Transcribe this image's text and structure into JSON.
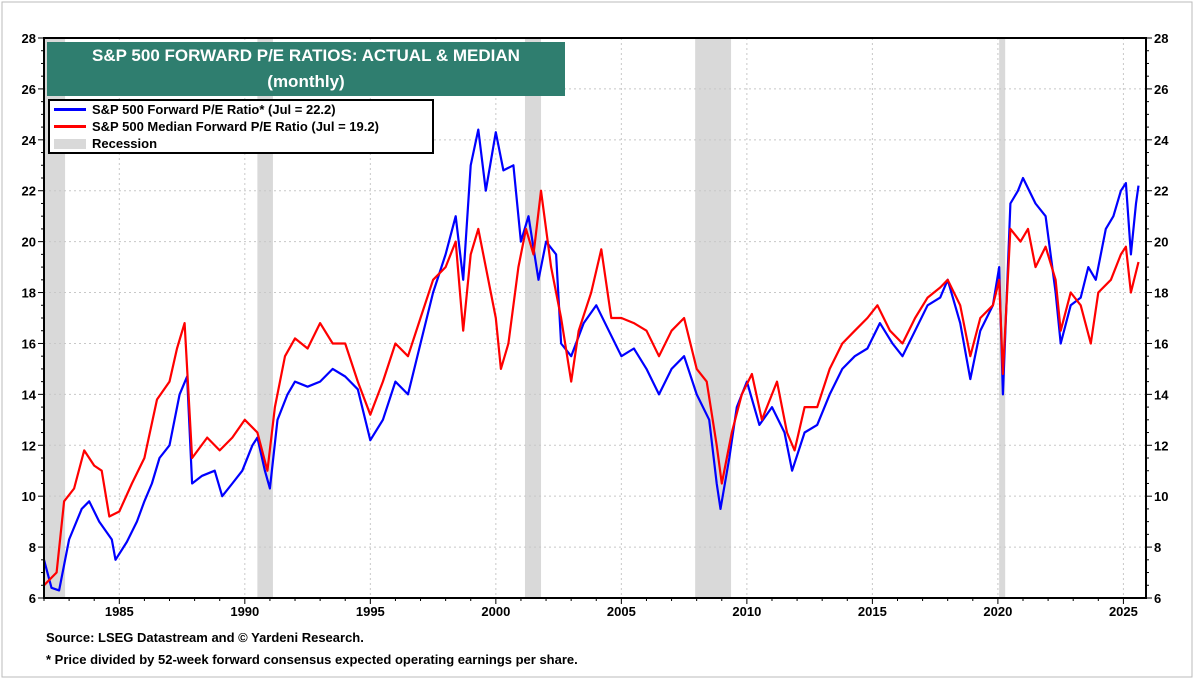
{
  "chart_data": {
    "type": "line",
    "title": "S&P 500 FORWARD P/E RATIOS: ACTUAL & MEDIAN",
    "subtitle": "(monthly)",
    "xlabel": "",
    "ylabel": "",
    "xlim": [
      1982.0,
      2025.9
    ],
    "ylim": [
      6,
      28
    ],
    "y_ticks": [
      6,
      8,
      10,
      12,
      14,
      16,
      18,
      20,
      22,
      24,
      26,
      28
    ],
    "x_ticks": [
      1985,
      1990,
      1995,
      2000,
      2005,
      2010,
      2015,
      2020,
      2025
    ],
    "grid": true,
    "legend_position": "top-left",
    "series": [
      {
        "name": "S&P 500 Forward P/E Ratio* (Jul = 22.2)",
        "color": "#0000ff",
        "x": [
          1982.0,
          1982.3,
          1982.6,
          1983.0,
          1983.5,
          1983.8,
          1984.2,
          1984.7,
          1984.85,
          1985.3,
          1985.7,
          1986.0,
          1986.3,
          1986.6,
          1987.0,
          1987.4,
          1987.7,
          1987.9,
          1988.3,
          1988.8,
          1989.1,
          1989.5,
          1989.9,
          1990.3,
          1990.5,
          1990.8,
          1991.0,
          1991.3,
          1991.7,
          1992.0,
          1992.5,
          1993.0,
          1993.5,
          1994.0,
          1994.5,
          1995.0,
          1995.5,
          1996.0,
          1996.5,
          1997.0,
          1997.5,
          1998.0,
          1998.4,
          1998.7,
          1999.0,
          1999.3,
          1999.6,
          2000.0,
          2000.3,
          2000.7,
          2001.0,
          2001.3,
          2001.7,
          2002.0,
          2002.4,
          2002.6,
          2003.0,
          2003.5,
          2004.0,
          2004.5,
          2005.0,
          2005.5,
          2006.0,
          2006.5,
          2007.0,
          2007.5,
          2008.0,
          2008.5,
          2008.8,
          2008.95,
          2009.3,
          2009.6,
          2010.0,
          2010.5,
          2011.0,
          2011.5,
          2011.8,
          2012.3,
          2012.8,
          2013.3,
          2013.8,
          2014.3,
          2014.8,
          2015.3,
          2015.8,
          2016.2,
          2016.7,
          2017.2,
          2017.7,
          2018.0,
          2018.5,
          2018.9,
          2019.3,
          2019.8,
          2020.05,
          2020.2,
          2020.5,
          2020.8,
          2021.0,
          2021.5,
          2021.9,
          2022.3,
          2022.5,
          2022.9,
          2023.3,
          2023.6,
          2023.9,
          2024.3,
          2024.6,
          2024.9,
          2025.1,
          2025.3,
          2025.5,
          2025.6
        ],
        "values": [
          7.5,
          6.4,
          6.3,
          8.3,
          9.5,
          9.8,
          9.0,
          8.3,
          7.5,
          8.2,
          9.0,
          9.8,
          10.5,
          11.5,
          12.0,
          14.0,
          14.7,
          10.5,
          10.8,
          11.0,
          10.0,
          10.5,
          11.0,
          12.0,
          12.3,
          11.0,
          10.3,
          13.0,
          14.0,
          14.5,
          14.3,
          14.5,
          15.0,
          14.7,
          14.2,
          12.2,
          13.0,
          14.5,
          14.0,
          16.0,
          18.0,
          19.5,
          21.0,
          18.5,
          23.0,
          24.4,
          22.0,
          24.3,
          22.8,
          23.0,
          20.0,
          21.0,
          18.5,
          20.0,
          19.5,
          16.0,
          15.5,
          16.8,
          17.5,
          16.5,
          15.5,
          15.8,
          15.0,
          14.0,
          15.0,
          15.5,
          14.0,
          13.0,
          10.5,
          9.5,
          11.5,
          13.5,
          14.5,
          12.8,
          13.5,
          12.5,
          11.0,
          12.5,
          12.8,
          14.0,
          15.0,
          15.5,
          15.8,
          16.8,
          16.0,
          15.5,
          16.5,
          17.5,
          17.8,
          18.5,
          16.8,
          14.6,
          16.5,
          17.5,
          19.0,
          14.0,
          21.5,
          22.0,
          22.5,
          21.5,
          21.0,
          18.0,
          16.0,
          17.5,
          17.8,
          19.0,
          18.5,
          20.5,
          21.0,
          22.0,
          22.3,
          19.5,
          21.5,
          22.2
        ]
      },
      {
        "name": "S&P 500 Median Forward P/E Ratio  (Jul = 19.2)",
        "color": "#ff0000",
        "x": [
          1982.0,
          1982.5,
          1982.8,
          1983.2,
          1983.6,
          1984.0,
          1984.3,
          1984.6,
          1985.0,
          1985.5,
          1986.0,
          1986.5,
          1987.0,
          1987.3,
          1987.6,
          1987.9,
          1988.5,
          1989.0,
          1989.5,
          1990.0,
          1990.5,
          1990.9,
          1991.2,
          1991.6,
          1992.0,
          1992.5,
          1993.0,
          1993.5,
          1994.0,
          1994.5,
          1995.0,
          1995.5,
          1996.0,
          1996.5,
          1997.0,
          1997.5,
          1998.0,
          1998.4,
          1998.7,
          1999.0,
          1999.3,
          1999.6,
          2000.0,
          2000.2,
          2000.5,
          2000.9,
          2001.2,
          2001.5,
          2001.8,
          2002.2,
          2002.6,
          2003.0,
          2003.3,
          2003.8,
          2004.2,
          2004.6,
          2005.0,
          2005.5,
          2006.0,
          2006.5,
          2007.0,
          2007.5,
          2008.0,
          2008.4,
          2008.8,
          2009.0,
          2009.4,
          2009.8,
          2010.2,
          2010.6,
          2011.2,
          2011.6,
          2011.9,
          2012.3,
          2012.8,
          2013.3,
          2013.8,
          2014.3,
          2014.8,
          2015.2,
          2015.7,
          2016.2,
          2016.7,
          2017.2,
          2017.7,
          2018.0,
          2018.5,
          2018.9,
          2019.3,
          2019.8,
          2020.05,
          2020.2,
          2020.5,
          2020.9,
          2021.2,
          2021.5,
          2021.9,
          2022.3,
          2022.5,
          2022.9,
          2023.3,
          2023.7,
          2024.0,
          2024.5,
          2024.9,
          2025.1,
          2025.3,
          2025.6
        ],
        "values": [
          6.5,
          7.0,
          9.8,
          10.3,
          11.8,
          11.2,
          11.0,
          9.2,
          9.4,
          10.5,
          11.5,
          13.8,
          14.5,
          15.8,
          16.8,
          11.5,
          12.3,
          11.8,
          12.3,
          13.0,
          12.5,
          11.0,
          13.5,
          15.5,
          16.2,
          15.8,
          16.8,
          16.0,
          16.0,
          14.5,
          13.2,
          14.5,
          16.0,
          15.5,
          17.0,
          18.5,
          19.0,
          20.0,
          16.5,
          19.5,
          20.5,
          19.0,
          17.0,
          15.0,
          16.0,
          19.0,
          20.5,
          19.5,
          22.0,
          19.0,
          17.0,
          14.5,
          16.5,
          18.0,
          19.7,
          17.0,
          17.0,
          16.8,
          16.5,
          15.5,
          16.5,
          17.0,
          15.0,
          14.5,
          12.0,
          10.5,
          12.5,
          14.0,
          14.8,
          13.0,
          14.5,
          12.5,
          11.8,
          13.5,
          13.5,
          15.0,
          16.0,
          16.5,
          17.0,
          17.5,
          16.5,
          16.0,
          17.0,
          17.8,
          18.2,
          18.5,
          17.5,
          15.5,
          17.0,
          17.5,
          18.5,
          14.8,
          20.5,
          20.0,
          20.5,
          19.0,
          19.8,
          18.5,
          16.5,
          18.0,
          17.5,
          16.0,
          18.0,
          18.5,
          19.5,
          19.8,
          18.0,
          19.2
        ]
      }
    ],
    "recession_label": "Recession",
    "recessions": [
      [
        1982.0,
        1982.84
      ],
      [
        1990.5,
        1991.12
      ],
      [
        2001.16,
        2001.8
      ],
      [
        2007.94,
        2009.37
      ],
      [
        2020.05,
        2020.29
      ]
    ],
    "recession_color": "#d9d9d9"
  },
  "footnotes": {
    "source": "Source: LSEG Datastream and © Yardeni Research.",
    "note": "* Price divided by 52-week forward consensus expected operating earnings per share."
  }
}
